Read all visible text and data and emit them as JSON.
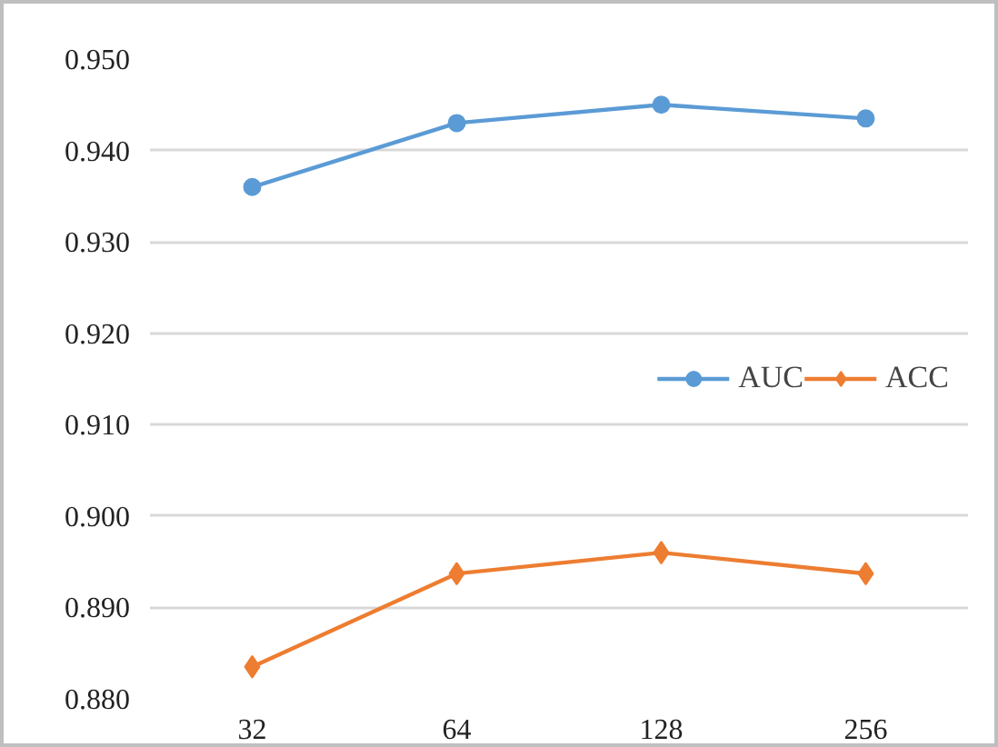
{
  "chart_data": {
    "type": "line",
    "categories": [
      "32",
      "64",
      "128",
      "256"
    ],
    "series": [
      {
        "name": "AUC",
        "color": "#5b9bd5",
        "marker": "circle",
        "values": [
          0.936,
          0.943,
          0.945,
          0.9435
        ]
      },
      {
        "name": "ACC",
        "color": "#ed7d31",
        "marker": "diamond",
        "values": [
          0.8835,
          0.8937,
          0.896,
          0.8937
        ]
      }
    ],
    "ylim": [
      0.88,
      0.95
    ],
    "yticks": [
      {
        "value": 0.88,
        "label": "0.880"
      },
      {
        "value": 0.89,
        "label": "0.890"
      },
      {
        "value": 0.9,
        "label": "0.900"
      },
      {
        "value": 0.91,
        "label": "0.910"
      },
      {
        "value": 0.92,
        "label": "0.920"
      },
      {
        "value": 0.93,
        "label": "0.930"
      },
      {
        "value": 0.94,
        "label": "0.940"
      },
      {
        "value": 0.95,
        "label": "0.950"
      }
    ],
    "grid": "y",
    "legend": "right",
    "line_style": "solid"
  }
}
